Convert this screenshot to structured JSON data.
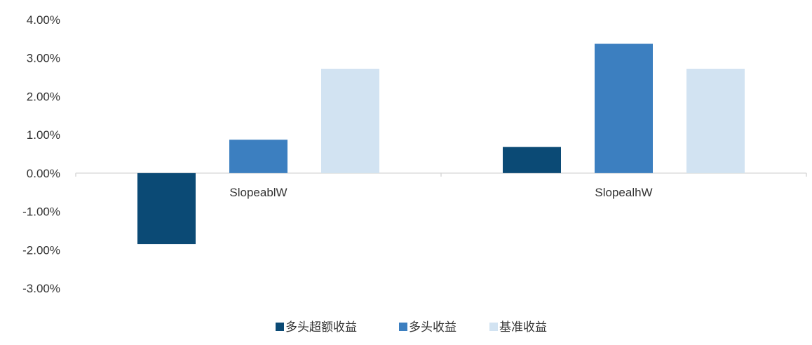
{
  "chart_data": {
    "type": "bar",
    "categories": [
      "SlopeablW",
      "SlopealhW"
    ],
    "series": [
      {
        "name": "多头超额收益",
        "color": "#0b4a75",
        "values": [
          -1.85,
          0.68
        ]
      },
      {
        "name": "多头收益",
        "color": "#3c7fc0",
        "values": [
          0.87,
          3.37
        ]
      },
      {
        "name": "基准收益",
        "color": "#d2e3f2",
        "values": [
          2.72,
          2.72
        ]
      }
    ],
    "y_ticks": [
      "4.00%",
      "3.00%",
      "2.00%",
      "1.00%",
      "0.00%",
      "-1.00%",
      "-2.00%",
      "-3.00%"
    ],
    "ylim": [
      -3,
      4
    ],
    "y_unit": "%",
    "grid": false,
    "legend_position": "bottom"
  }
}
